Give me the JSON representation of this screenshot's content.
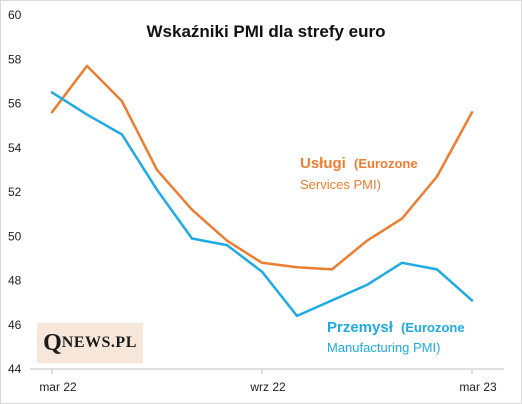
{
  "chart_data": {
    "type": "line",
    "title": "Wskaźniki PMI dla strefy euro",
    "xlabel": "",
    "ylabel": "",
    "x": [
      "2022-03",
      "2022-04",
      "2022-05",
      "2022-06",
      "2022-07",
      "2022-08",
      "2022-09",
      "2022-10",
      "2022-11",
      "2022-12",
      "2023-01",
      "2023-02",
      "2023-03"
    ],
    "x_ticks": [
      {
        "index": 0,
        "label": "mar 22"
      },
      {
        "index": 6,
        "label": "wrz 22"
      },
      {
        "index": 12,
        "label": "mar 23"
      }
    ],
    "ylim": [
      44,
      60
    ],
    "y_ticks": [
      44,
      46,
      48,
      50,
      52,
      54,
      56,
      58,
      60
    ],
    "grid": false,
    "series": [
      {
        "name": "Usługi",
        "name_detail": "(Eurozone Services PMI)",
        "color": "#ed7d31",
        "values": [
          55.6,
          57.7,
          56.1,
          53.0,
          51.2,
          49.8,
          48.8,
          48.6,
          48.5,
          49.8,
          50.8,
          52.7,
          55.6
        ]
      },
      {
        "name": "Przemysł",
        "name_detail": "(Eurozone Manufacturing PMI)",
        "color": "#1eabe3",
        "values": [
          56.5,
          55.5,
          54.6,
          52.1,
          49.9,
          49.6,
          48.4,
          46.4,
          47.1,
          47.8,
          48.8,
          48.5,
          47.1
        ]
      }
    ],
    "annotations": {
      "services_bold": "Usługi",
      "services_detail_1": "(Eurozone",
      "services_detail_2": "Services PMI)",
      "manufacturing_bold": "Przemysł",
      "manufacturing_detail_1": "(Eurozone",
      "manufacturing_detail_2": "Manufacturing PMI)"
    }
  },
  "logo": {
    "q": "Q",
    "rest": "NEWS.PL"
  }
}
